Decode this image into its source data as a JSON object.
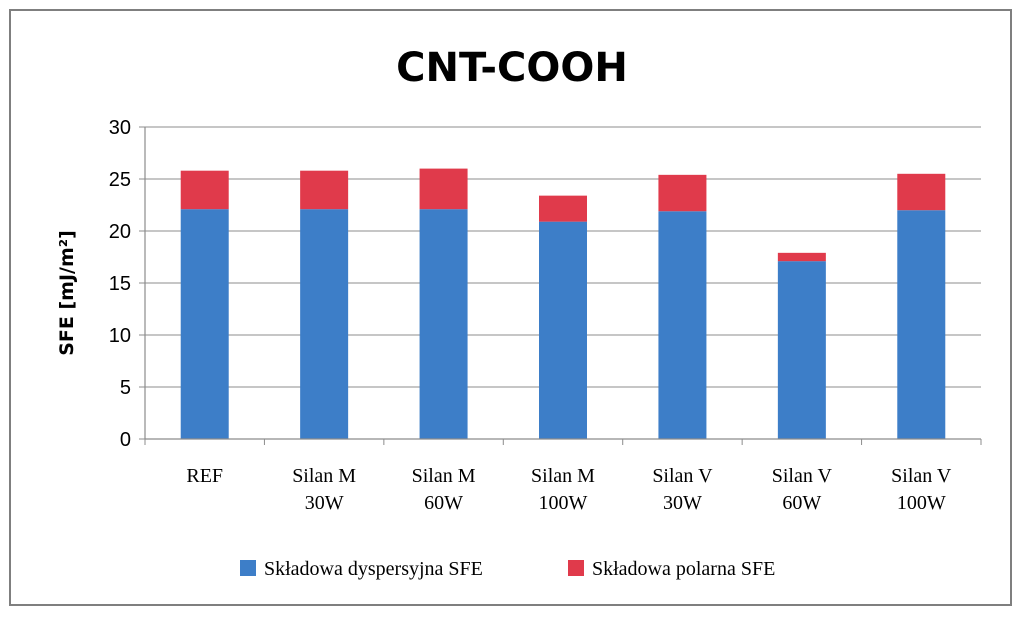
{
  "chart_data": {
    "type": "bar",
    "stacked": true,
    "title": "CNT-COOH",
    "ylabel": "SFE [mJ/m²]",
    "xlabel": "",
    "ylim": [
      0,
      30
    ],
    "yticks": [
      "0",
      "5",
      "10",
      "15",
      "20",
      "25",
      "30"
    ],
    "grid": true,
    "legend_position": "bottom",
    "categories": [
      [
        "REF"
      ],
      [
        "Silan M",
        "30W"
      ],
      [
        "Silan M",
        "60W"
      ],
      [
        "Silan M",
        "100W"
      ],
      [
        "Silan V",
        "30W"
      ],
      [
        "Silan V",
        "60W"
      ],
      [
        "Silan V",
        "100W"
      ]
    ],
    "series": [
      {
        "name": "Składowa dyspersyjna SFE",
        "color": "#3d7ec8",
        "values": [
          22.1,
          22.1,
          22.1,
          20.9,
          21.9,
          17.1,
          22.0
        ]
      },
      {
        "name": "Składowa polarna SFE",
        "color": "#e03a4b",
        "values": [
          3.7,
          3.7,
          3.9,
          2.5,
          3.5,
          0.8,
          3.5
        ]
      }
    ]
  }
}
